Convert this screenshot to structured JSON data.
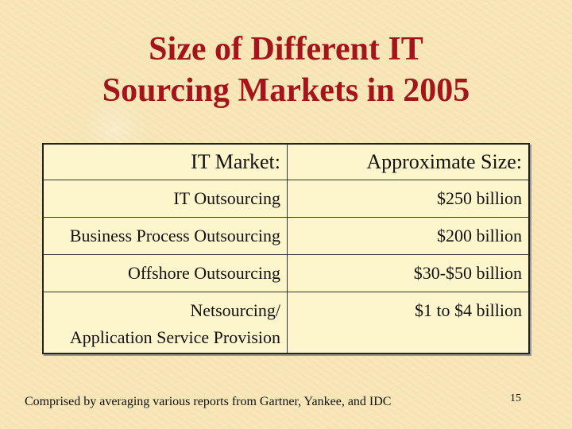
{
  "title": {
    "line1": "Size of Different IT",
    "line2": "Sourcing Markets in 2005"
  },
  "table": {
    "headers": [
      "IT Market:",
      "Approximate Size:"
    ],
    "rows": [
      {
        "market": [
          "IT Outsourcing"
        ],
        "size": "$250 billion"
      },
      {
        "market": [
          "Business Process Outsourcing"
        ],
        "size": "$200 billion"
      },
      {
        "market": [
          "Offshore Outsourcing"
        ],
        "size": "$30-$50 billion"
      },
      {
        "market": [
          "Netsourcing/",
          "Application Service Provision"
        ],
        "size": "$1 to $4 billion"
      }
    ]
  },
  "footer": "Comprised by averaging various reports from Gartner, Yankee, and IDC",
  "page_number": "15",
  "colors": {
    "title": "#a4151b",
    "background": "#f7e6b8",
    "table_background": "#fdf6cc"
  }
}
